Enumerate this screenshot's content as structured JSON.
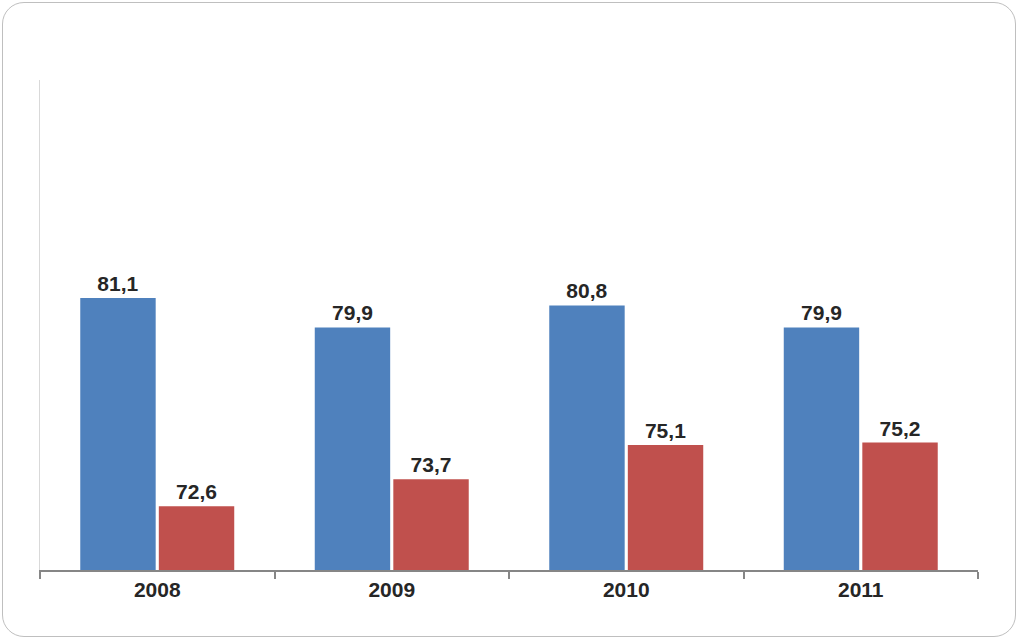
{
  "chart_data": {
    "type": "bar",
    "categories": [
      "2008",
      "2009",
      "2010",
      "2011"
    ],
    "series": [
      {
        "color": "#4f81bd",
        "values": [
          81.1,
          79.9,
          80.8,
          79.9
        ],
        "value_labels": [
          "81,1",
          "79,9",
          "80,8",
          "79,9"
        ]
      },
      {
        "color": "#c0504d",
        "values": [
          72.6,
          73.7,
          75.1,
          75.2
        ],
        "value_labels": [
          "72,6",
          "73,7",
          "75,1",
          "75,2"
        ]
      }
    ],
    "ylim": [
      70,
      90
    ],
    "yticks": [],
    "grid": false,
    "data_labels": true,
    "tick_labels": "x"
  }
}
